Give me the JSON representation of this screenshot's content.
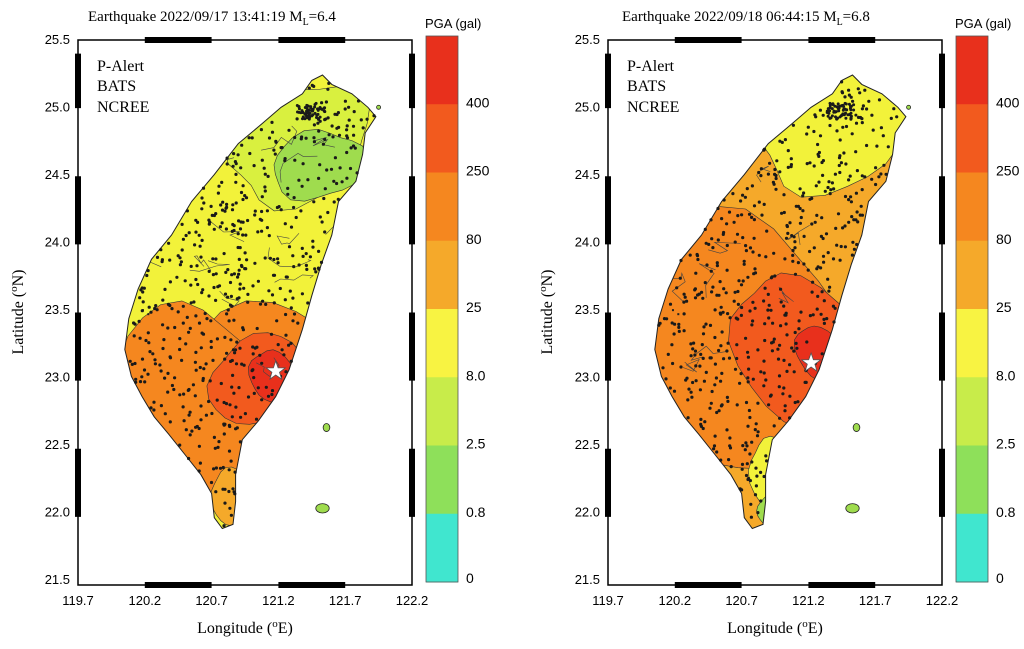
{
  "scale": {
    "title": "PGA (gal)",
    "labels": [
      "400",
      "250",
      "80",
      "25",
      "8.0",
      "2.5",
      "0.8",
      "0"
    ],
    "band_colors": [
      "#e8301c",
      "#f25a1e",
      "#f5871f",
      "#f5a92a",
      "#f8f342",
      "#c8ec4a",
      "#8ee05a",
      "#40e6cf"
    ]
  },
  "axes": {
    "xlabel": "Longitude (",
    "xlabel_sup": "o",
    "xlabel_tail": "E)",
    "ylabel": "Latitude (",
    "ylabel_sup": "o",
    "ylabel_tail": "N)",
    "x_ticks": [
      "119.7",
      "120.2",
      "120.7",
      "121.2",
      "121.7",
      "122.2"
    ],
    "y_ticks": [
      "25.5",
      "25.0",
      "24.5",
      "24.0",
      "23.5",
      "23.0",
      "22.5",
      "22.0",
      "21.5"
    ]
  },
  "legend_lines": [
    "P-Alert",
    "BATS",
    "NCREE"
  ],
  "panels": [
    {
      "title_main": "Earthquake 2022/09/17 13:41:19 M",
      "title_sub": "L",
      "title_tail": "=6.4",
      "epicenter": {
        "lon": 121.18,
        "lat": 23.09
      }
    },
    {
      "title_main": "Earthquake 2022/09/18 06:44:15 M",
      "title_sub": "L",
      "title_tail": "=6.8",
      "epicenter": {
        "lon": 121.22,
        "lat": 23.15
      }
    }
  ],
  "colors": {
    "north_low": "#9fdc4e",
    "mid_low": "#d9f03f",
    "yellow": "#f2f23a",
    "orange_light": "#f5a92a",
    "orange": "#f5871f",
    "red_orange": "#f25a1e",
    "red": "#e8301c",
    "teal": "#40e6cf",
    "station": "#1a1a1a"
  }
}
